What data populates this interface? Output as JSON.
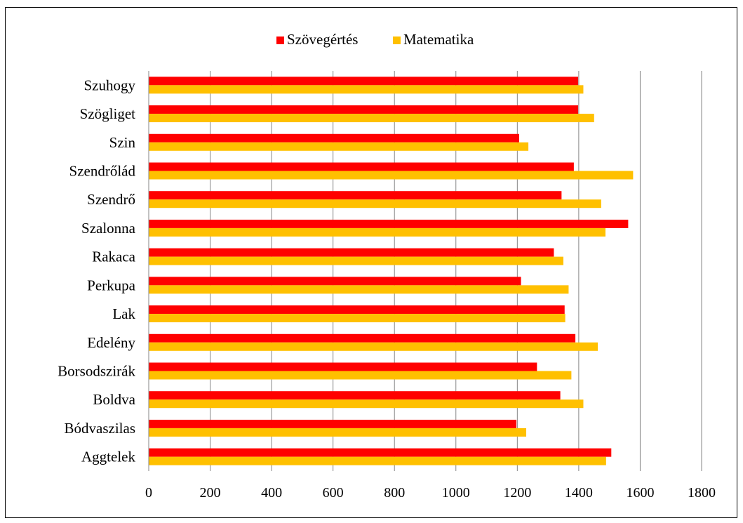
{
  "chart_data": {
    "type": "bar",
    "orientation": "horizontal",
    "categories": [
      "Szuhogy",
      "Szögliget",
      "Szin",
      "Szendrőlád",
      "Szendrő",
      "Szalonna",
      "Rakaca",
      "Perkupa",
      "Lak",
      "Edelény",
      "Borsodszirák",
      "Boldva",
      "Bódvaszilas",
      "Aggtelek"
    ],
    "series": [
      {
        "name": "Szövegértés",
        "color": "#ff0000",
        "values": [
          1398,
          1398,
          1206,
          1384,
          1344,
          1561,
          1319,
          1212,
          1354,
          1389,
          1264,
          1340,
          1197,
          1506
        ]
      },
      {
        "name": "Matematika",
        "color": "#ffc000",
        "values": [
          1415,
          1450,
          1236,
          1577,
          1473,
          1487,
          1350,
          1367,
          1356,
          1462,
          1376,
          1415,
          1229,
          1489
        ]
      }
    ],
    "xlim": [
      0,
      1800
    ],
    "xticks": [
      "0",
      "200",
      "400",
      "600",
      "800",
      "1000",
      "1200",
      "1400",
      "1600",
      "1800"
    ],
    "grid": "vertical",
    "legend_position": "top"
  }
}
